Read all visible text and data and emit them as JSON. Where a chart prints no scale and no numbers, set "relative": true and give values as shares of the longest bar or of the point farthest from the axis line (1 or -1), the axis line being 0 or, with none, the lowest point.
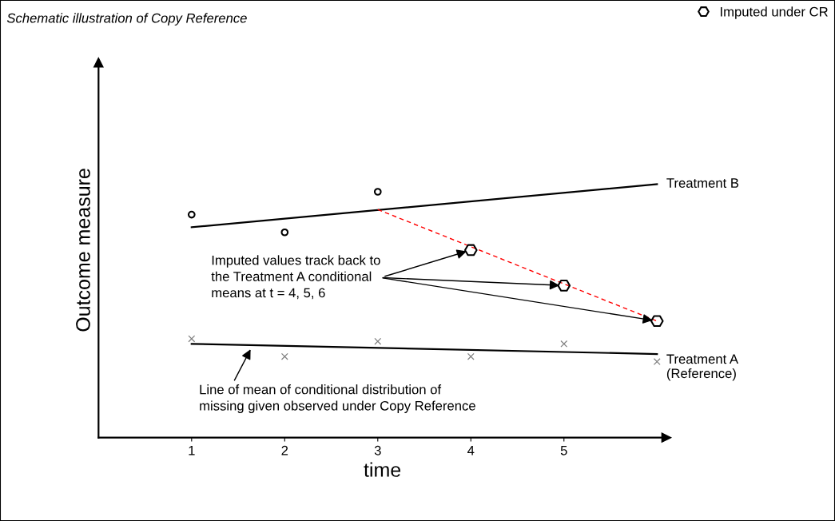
{
  "chart_data": {
    "type": "line",
    "title": "Schematic illustration of Copy Reference",
    "xlabel": "time",
    "ylabel": "Outcome measure",
    "relative": true,
    "xlim": [
      0,
      6.1
    ],
    "xticks": [
      1,
      2,
      3,
      4,
      5
    ],
    "grid": false,
    "legend": "top right",
    "series": [
      {
        "name": "Treatment B",
        "color": "#000000",
        "marker": "none",
        "line_style": "solid",
        "x": [
          1,
          6
        ],
        "values": [
          0.83,
          1.0
        ]
      },
      {
        "type": "scatter",
        "color": "#000000",
        "marker": "circle",
        "x": [
          1,
          2,
          3
        ],
        "values": [
          0.88,
          0.81,
          0.97
        ]
      },
      {
        "color": "#ff0000",
        "marker": "none",
        "line_style": "dashed",
        "x": [
          3,
          6
        ],
        "values": [
          0.9,
          0.46
        ]
      },
      {
        "name": "Imputed under CR",
        "type": "scatter",
        "color": "#000000",
        "x": [
          4,
          5,
          6
        ],
        "values": [
          0.74,
          0.6,
          0.46
        ]
      },
      {
        "name": "Treatment A\n(Reference)",
        "color": "#000000",
        "marker": "none",
        "line_style": "solid",
        "x": [
          1,
          6
        ],
        "values": [
          0.37,
          0.33
        ]
      },
      {
        "type": "scatter",
        "color": "#7f7f7f",
        "marker": "cross",
        "x": [
          1,
          2,
          3,
          4,
          5,
          6
        ],
        "values": [
          0.39,
          0.32,
          0.38,
          0.32,
          0.37,
          0.3
        ]
      }
    ],
    "annotations": [
      {
        "text": "Imputed values track back to\nthe Treatment A conditional\nmeans at t = 4, 5, 6",
        "x": 4,
        "y": 0.74
      },
      {
        "text": "Line of mean of conditional distribution of\nmissing given observed under Copy Reference",
        "x": 1.65,
        "y": 0.36
      }
    ]
  }
}
